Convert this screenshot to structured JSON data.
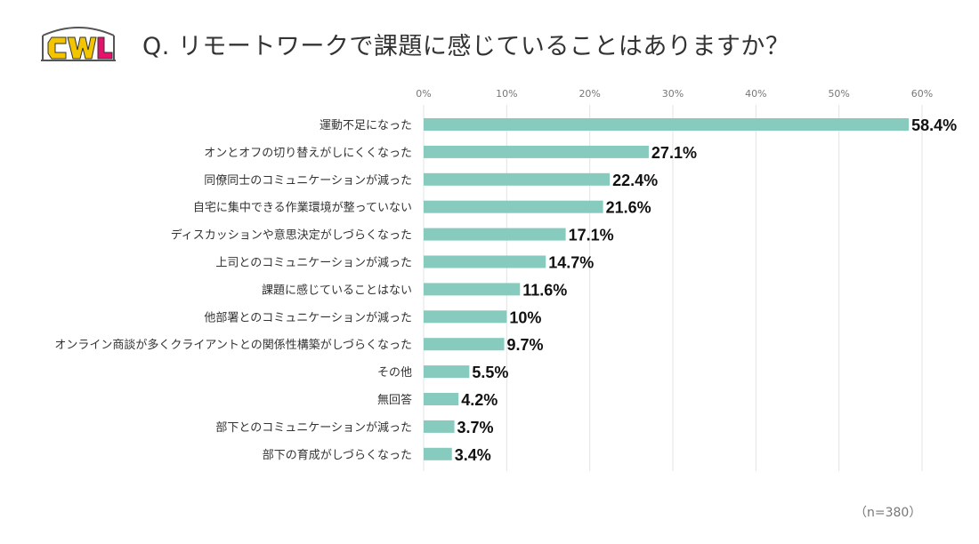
{
  "header": {
    "logo_text": "CWL",
    "title": "Q. リモートワークで課題に感じていることはありますか？"
  },
  "footer": {
    "note": "（n=380）"
  },
  "colors": {
    "bar": "#86cbbd",
    "grid": "#e3e3e3",
    "logo_c": "#f2c500",
    "logo_w": "#f2c500",
    "logo_l": "#e4126b"
  },
  "chart_data": {
    "type": "bar",
    "orientation": "horizontal",
    "title": "",
    "xlabel": "",
    "ylabel": "",
    "xlim": [
      0,
      60
    ],
    "tick_values": [
      0,
      10,
      20,
      30,
      40,
      50,
      60
    ],
    "tick_labels": [
      "0%",
      "10%",
      "20%",
      "30%",
      "40%",
      "50%",
      "60%"
    ],
    "grid": true,
    "legend": "none",
    "categories": [
      "運動不足になった",
      "オンとオフの切り替えがしにくくなった",
      "同僚同士のコミュニケーションが減った",
      "自宅に集中できる作業環境が整っていない",
      "ディスカッションや意思決定がしづらくなった",
      "上司とのコミュニケーションが減った",
      "課題に感じていることはない",
      "他部署とのコミュニケーションが減った",
      "オンライン商談が多くクライアントとの関係性構築がしづらくなった",
      "その他",
      "無回答",
      "部下とのコミュニケーションが減った",
      "部下の育成がしづらくなった"
    ],
    "values": [
      58.4,
      27.1,
      22.4,
      21.6,
      17.1,
      14.7,
      11.6,
      10,
      9.7,
      5.5,
      4.2,
      3.7,
      3.4
    ],
    "value_labels": [
      "58.4%",
      "27.1%",
      "22.4%",
      "21.6%",
      "17.1%",
      "14.7%",
      "11.6%",
      "10%",
      "9.7%",
      "5.5%",
      "4.2%",
      "3.7%",
      "3.4%"
    ]
  }
}
